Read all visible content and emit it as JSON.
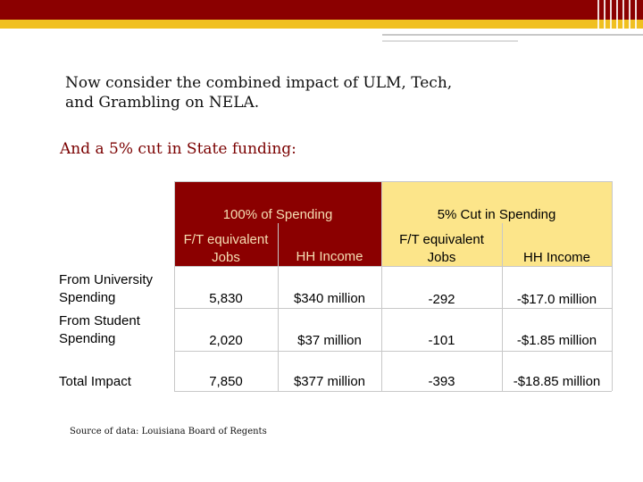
{
  "title_line1": "Now consider the combined impact of ULM, Tech,",
  "title_line2": "and Grambling on NELA.",
  "subtitle": "And a 5% cut in State funding:",
  "table": {
    "group_headers": [
      "100% of Spending",
      "5% Cut in Spending"
    ],
    "col_headers": {
      "jobs_line1": "F/T equivalent",
      "jobs_line2": "Jobs",
      "income": "HH Income"
    },
    "rows": [
      {
        "label_line1": "From University",
        "label_line2": "Spending",
        "jobs_full": "5,830",
        "income_full": "$340 million",
        "jobs_cut": "-292",
        "income_cut": "-$17.0 million"
      },
      {
        "label_line1": "From Student",
        "label_line2": "Spending",
        "jobs_full": "2,020",
        "income_full": "$37 million",
        "jobs_cut": "-101",
        "income_cut": "-$1.85 million"
      },
      {
        "label_line1": "Total Impact",
        "label_line2": "",
        "jobs_full": "7,850",
        "income_full": "$377 million",
        "jobs_cut": "-393",
        "income_cut": "-$18.85 million"
      }
    ]
  },
  "source": "Source of data: Louisiana Board of Regents",
  "colors": {
    "maroon": "#8b0000",
    "gold": "#f0c020",
    "light_gold": "#fce58a"
  }
}
